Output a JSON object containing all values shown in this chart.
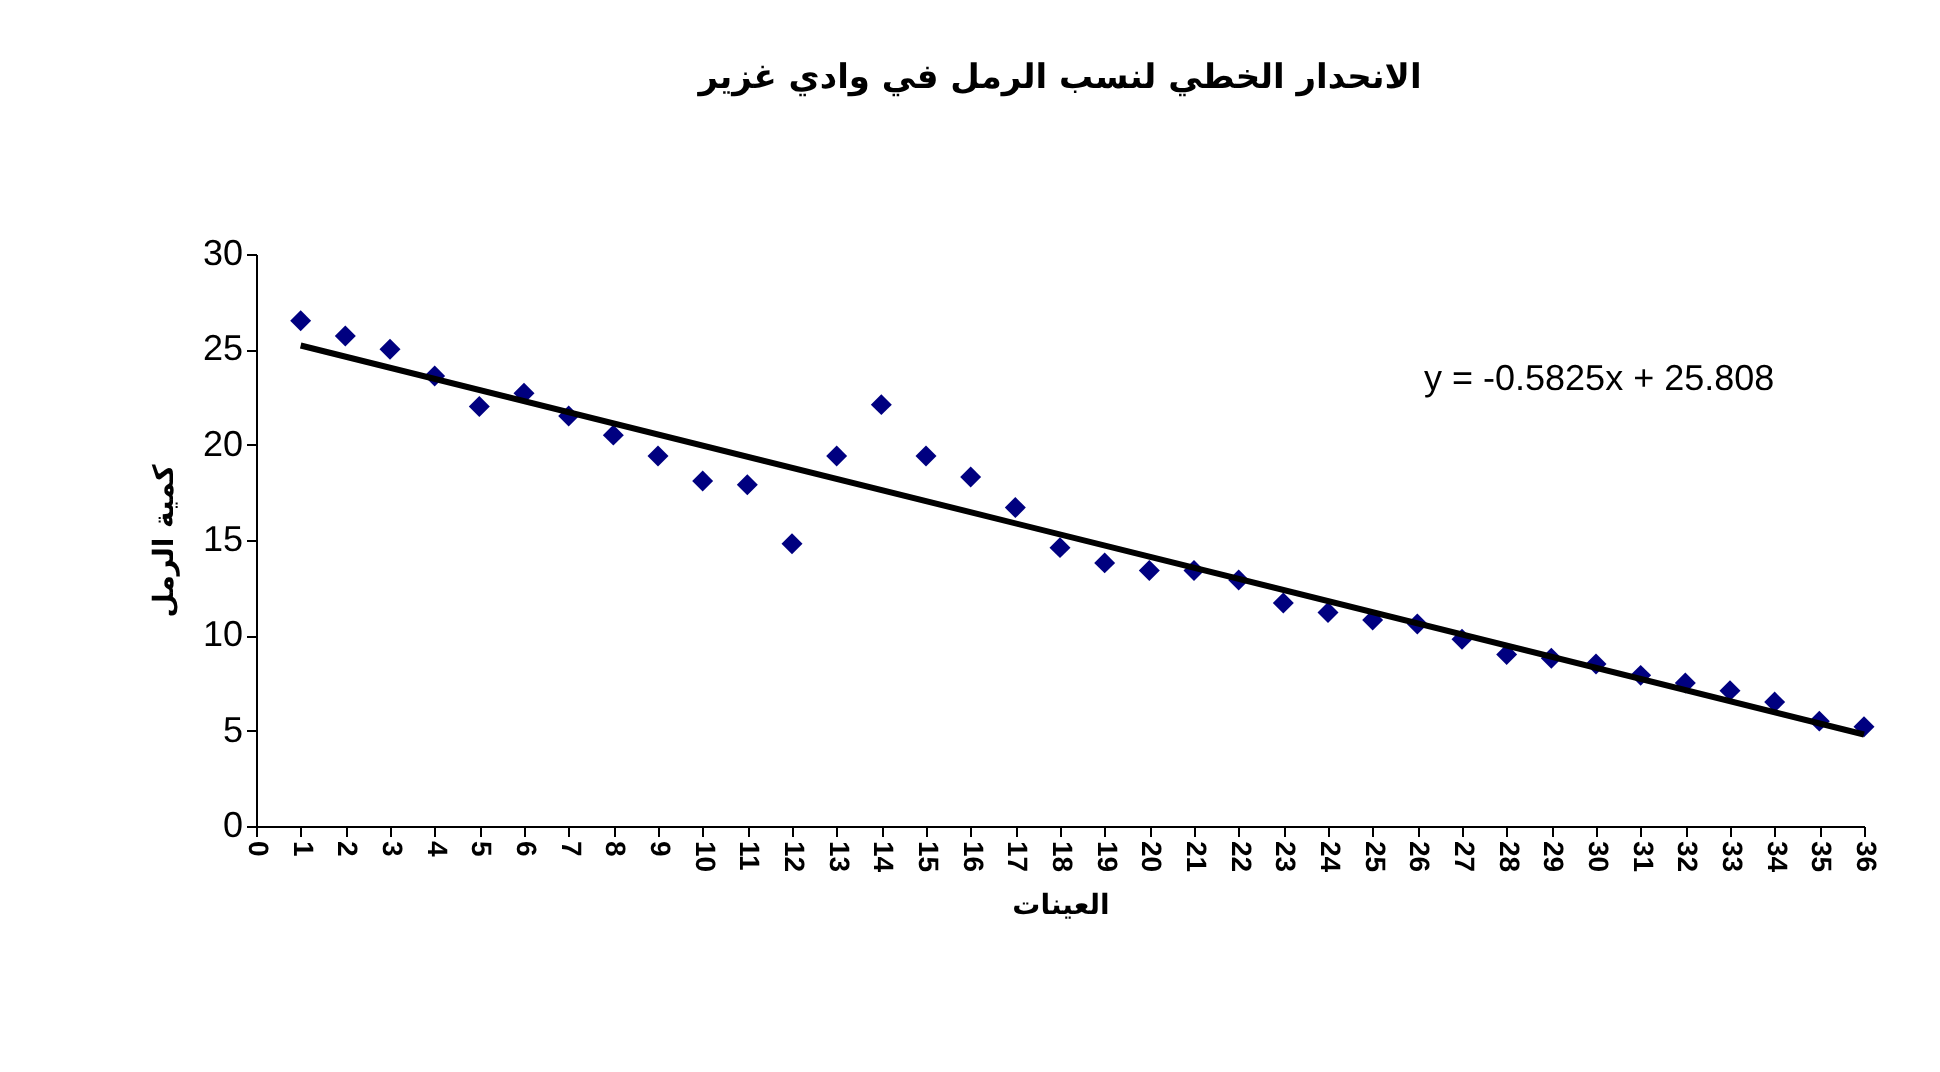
{
  "chart_data": {
    "type": "scatter",
    "title": "الانحدار الخطي لنسب الرمل في وادي غزير",
    "xlabel": "العينات",
    "ylabel": "كمية الرمل",
    "x": [
      1,
      2,
      3,
      4,
      5,
      6,
      7,
      8,
      9,
      10,
      11,
      12,
      13,
      14,
      15,
      16,
      17,
      18,
      19,
      20,
      21,
      22,
      23,
      24,
      25,
      26,
      27,
      28,
      29,
      30,
      31,
      32,
      33,
      34,
      35,
      36
    ],
    "series": [
      {
        "type": "scatter",
        "color": "#000080",
        "marker": "diamond",
        "values": [
          26.5,
          25.7,
          25.0,
          23.6,
          22.0,
          22.7,
          21.5,
          20.5,
          19.4,
          18.1,
          17.9,
          14.8,
          19.4,
          22.1,
          19.4,
          18.3,
          16.7,
          14.6,
          13.8,
          13.4,
          13.4,
          12.9,
          11.7,
          11.2,
          10.8,
          10.6,
          9.8,
          9.0,
          8.8,
          8.5,
          7.9,
          7.5,
          7.1,
          6.5,
          5.5,
          5.2
        ]
      },
      {
        "type": "line",
        "color": "#000000",
        "line_style": "solid",
        "marker": "none",
        "x": [
          1,
          36
        ],
        "values": [
          25.2,
          4.8
        ]
      }
    ],
    "annotations": [
      "y = -0.5825x + 25.808"
    ],
    "xlim": [
      0,
      36
    ],
    "xticks": [
      0,
      1,
      2,
      3,
      4,
      5,
      6,
      7,
      8,
      9,
      10,
      11,
      12,
      13,
      14,
      15,
      16,
      17,
      18,
      19,
      20,
      21,
      22,
      23,
      24,
      25,
      26,
      27,
      28,
      29,
      30,
      31,
      32,
      33,
      34,
      35,
      36
    ],
    "ylim": [
      0,
      30
    ],
    "yticks": [
      0,
      5,
      10,
      15,
      20,
      25,
      30
    ],
    "tick_labels": true
  }
}
